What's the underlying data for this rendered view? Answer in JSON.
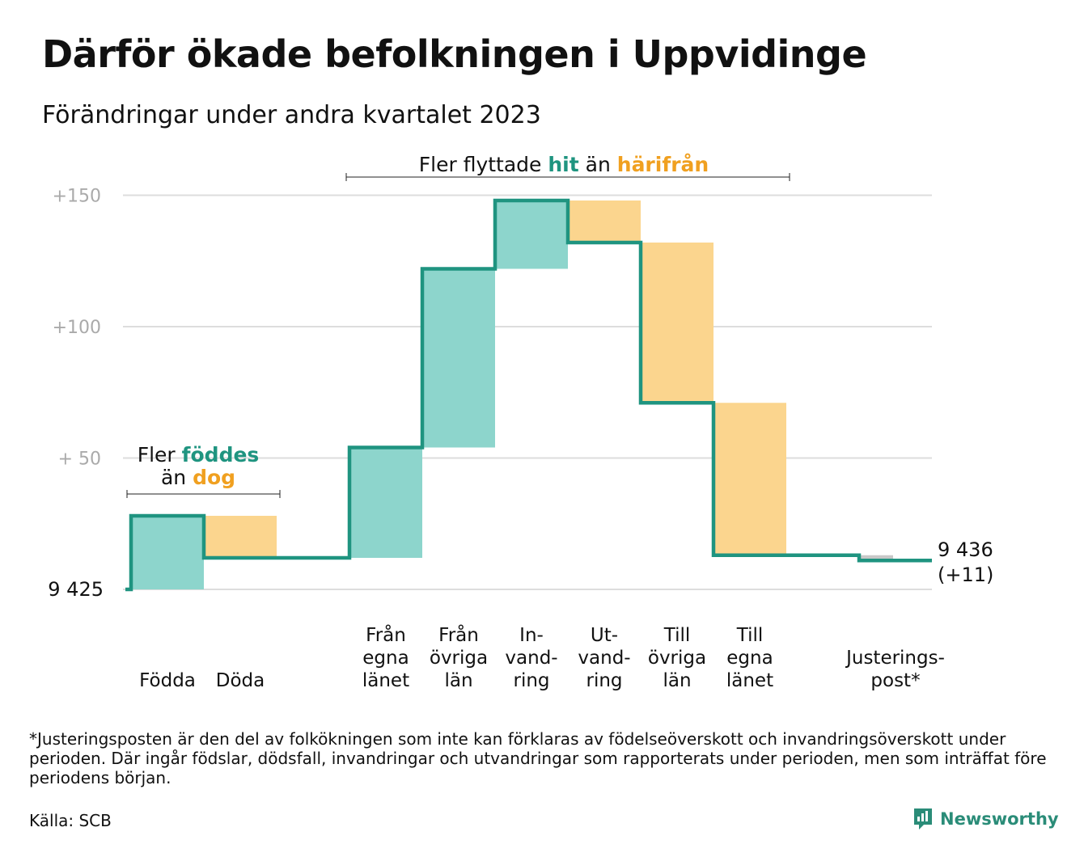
{
  "title": "Därför ökade befolkningen i Uppvidinge",
  "subtitle": "Förändringar under andra kvartalet 2023",
  "chart_data": {
    "type": "bar",
    "subtype": "waterfall",
    "baseline_label": "9 425",
    "start_value": 9425,
    "end_value": 9436,
    "end_label_line1": "9 436",
    "end_label_line2": "(+11)",
    "y_ticks": [
      {
        "value": 50,
        "label": "+ 50"
      },
      {
        "value": 100,
        "label": "+100"
      },
      {
        "value": 150,
        "label": "+150"
      }
    ],
    "ylim": [
      0,
      150
    ],
    "grid": true,
    "steps": [
      {
        "label_lines": [
          "Födda"
        ],
        "change": 28,
        "kind": "in"
      },
      {
        "label_lines": [
          "Döda"
        ],
        "change": -16,
        "kind": "out"
      },
      {
        "label_lines": [],
        "change": 0,
        "kind": "spacer"
      },
      {
        "label_lines": [
          "Från",
          "egna",
          "länet"
        ],
        "change": 42,
        "kind": "in"
      },
      {
        "label_lines": [
          "Från",
          "övriga",
          "län"
        ],
        "change": 68,
        "kind": "in"
      },
      {
        "label_lines": [
          "In-",
          "vand-",
          "ring"
        ],
        "change": 26,
        "kind": "in"
      },
      {
        "label_lines": [
          "Ut-",
          "vand-",
          "ring"
        ],
        "change": -16,
        "kind": "out"
      },
      {
        "label_lines": [
          "Till",
          "övriga",
          "län"
        ],
        "change": -61,
        "kind": "out"
      },
      {
        "label_lines": [
          "Till",
          "egna",
          "länet"
        ],
        "change": -58,
        "kind": "out"
      },
      {
        "label_lines": [],
        "change": 0,
        "kind": "spacer"
      },
      {
        "label_lines": [
          "Justerings-",
          "post*"
        ],
        "change": -2,
        "kind": "adjust"
      }
    ],
    "annotations": {
      "births": {
        "line1_prefix": "Fler ",
        "line1_highlight": "föddes",
        "line2_prefix": "än ",
        "line2_highlight": "dog"
      },
      "migration": {
        "prefix": "Fler flyttade ",
        "highlight_in": "hit",
        "middle": " än ",
        "highlight_out": "härifrån"
      }
    },
    "colors": {
      "in_fill": "#8dd5cc",
      "out_fill": "#fbd58e",
      "line": "#1f9480",
      "in_text": "#1f9480",
      "out_text": "#f0a020",
      "adjust_fill": "#c8c8c8",
      "grid": "#dddddd",
      "tick_text": "#aaaaaa"
    }
  },
  "footnote": "*Justeringsposten är den del av folkökningen som inte kan förklaras av födelseöverskott och invandringsöverskott under perioden. Där ingår födslar, dödsfall, invandringar och utvandringar som rapporterats under perioden, men som inträffat före periodens början.",
  "source": "Källa: SCB",
  "brand": {
    "name": "Newsworthy",
    "icon": "newsworthy-logo-icon",
    "color": "#2a8c78"
  }
}
